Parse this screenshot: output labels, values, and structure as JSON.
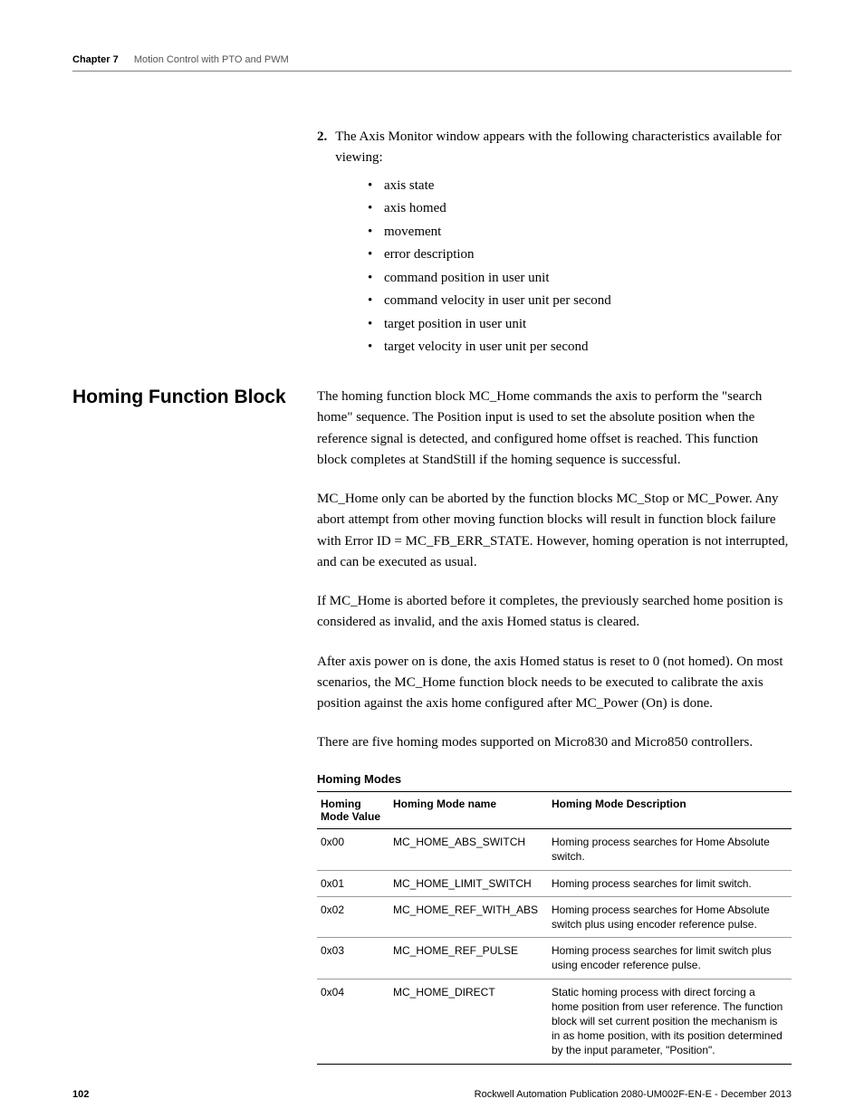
{
  "header": {
    "chapter_label": "Chapter 7",
    "chapter_title": "Motion Control with PTO and PWM"
  },
  "list_section": {
    "numbered_item_num": "2.",
    "numbered_item_text": "The Axis Monitor window appears with the following characteristics available for viewing:",
    "bullets": [
      "axis state",
      "axis homed",
      "movement",
      "error description",
      "command position in user unit",
      "command velocity in user unit per second",
      "target position in user unit",
      "target velocity in user unit per second"
    ]
  },
  "section": {
    "heading": "Homing Function Block",
    "paras": [
      "The homing function block MC_Home commands the axis to perform the \"search home\" sequence. The Position input is used to set the absolute position when the reference signal is detected, and configured home offset is reached. This function block completes at StandStill if the homing sequence is successful.",
      "MC_Home only can be aborted by the function blocks MC_Stop or MC_Power. Any abort attempt from other moving function blocks will result in function block failure with Error ID = MC_FB_ERR_STATE. However, homing operation is not interrupted, and can be executed as usual.",
      "If MC_Home is aborted before it completes, the previously searched home position is considered as invalid, and the axis Homed status is cleared.",
      "After axis power on is done, the axis Homed status is reset to 0 (not homed). On most scenarios, the MC_Home function block needs to be executed to calibrate the axis position against the axis home configured after MC_Power (On) is done.",
      "There are five homing modes supported on Micro830 and Micro850 controllers."
    ]
  },
  "table": {
    "title": "Homing Modes",
    "columns": [
      "Homing Mode Value",
      "Homing Mode name",
      "Homing Mode Description"
    ],
    "rows": [
      [
        "0x00",
        "MC_HOME_ABS_SWITCH",
        "Homing process searches for Home Absolute switch."
      ],
      [
        "0x01",
        "MC_HOME_LIMIT_SWITCH",
        "Homing process searches for limit switch."
      ],
      [
        "0x02",
        "MC_HOME_REF_WITH_ABS",
        "Homing process searches for Home Absolute switch plus using encoder reference pulse."
      ],
      [
        "0x03",
        "MC_HOME_REF_PULSE",
        "Homing process searches for limit switch plus using encoder reference pulse."
      ],
      [
        "0x04",
        "MC_HOME_DIRECT",
        "Static homing process with direct forcing a home position from user reference. The function block will set current position the mechanism is in as home position, with its position determined by the input parameter, \"Position\"."
      ]
    ]
  },
  "footer": {
    "page": "102",
    "pub": "Rockwell Automation Publication 2080-UM002F-EN-E - December 2013"
  }
}
